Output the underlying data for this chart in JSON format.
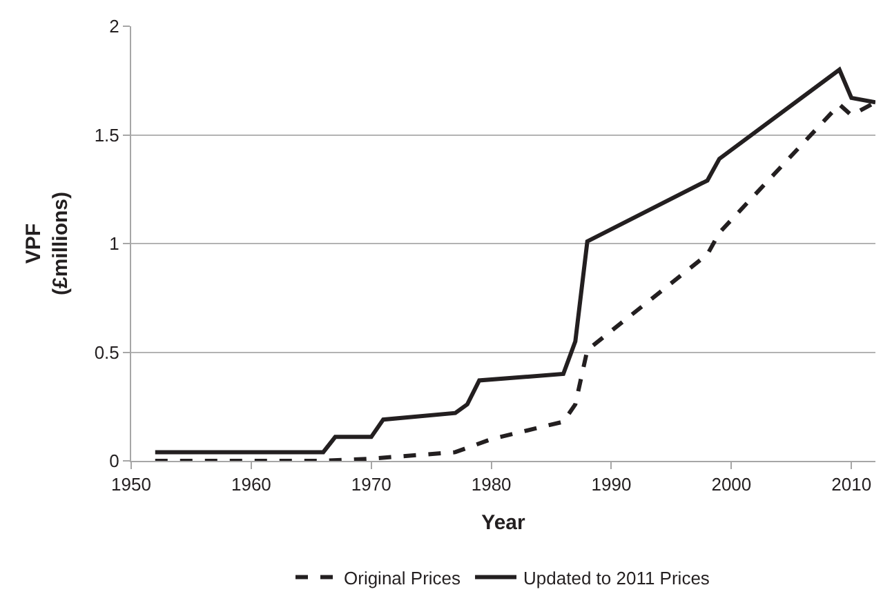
{
  "chart_data": {
    "type": "line",
    "xlabel": "Year",
    "ylabel": "VPF\n(£millions)",
    "xlim": [
      1950,
      2012
    ],
    "xticks": [
      1950,
      1960,
      1970,
      1980,
      1990,
      2000,
      2010
    ],
    "ylim": [
      0,
      2
    ],
    "yticks": [
      0,
      0.5,
      1,
      1.5,
      2
    ],
    "grid": "y",
    "legend": "bottom",
    "marker": "none",
    "series": [
      {
        "name": "Original Prices",
        "color": "#231f20",
        "line_style": "dashed",
        "x": [
          1952,
          1966,
          1970,
          1977,
          1980,
          1986,
          1987,
          1988,
          1998,
          1999,
          2009,
          2010,
          2012
        ],
        "values": [
          0,
          0,
          0.01,
          0.04,
          0.1,
          0.18,
          0.26,
          0.51,
          0.95,
          1.05,
          1.64,
          1.59,
          1.65
        ]
      },
      {
        "name": "Updated to 2011 Prices",
        "color": "#231f20",
        "line_style": "solid",
        "x": [
          1952,
          1966,
          1967,
          1970,
          1971,
          1977,
          1978,
          1979,
          1986,
          1987,
          1988,
          1998,
          1999,
          2009,
          2010,
          2012
        ],
        "values": [
          0.04,
          0.04,
          0.11,
          0.11,
          0.19,
          0.22,
          0.26,
          0.37,
          0.4,
          0.55,
          1.01,
          1.29,
          1.39,
          1.8,
          1.67,
          1.65
        ]
      }
    ]
  }
}
